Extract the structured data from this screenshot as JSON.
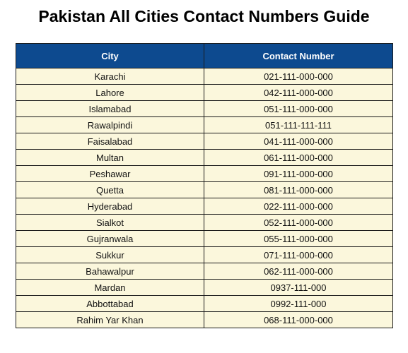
{
  "document": {
    "title": "Pakistan All Cities Contact Numbers Guide",
    "colors": {
      "header_background": "#0d4a8f",
      "header_text": "#ffffff",
      "row_background": "#fbf7dc"
    }
  },
  "table": {
    "headers": [
      "City",
      "Contact Number"
    ],
    "rows": [
      [
        "Karachi",
        "021-111-000-000"
      ],
      [
        "Lahore",
        "042-111-000-000"
      ],
      [
        "Islamabad",
        "051-111-000-000"
      ],
      [
        "Rawalpindi",
        "051-111-111-111"
      ],
      [
        "Faisalabad",
        "041-111-000-000"
      ],
      [
        "Multan",
        "061-111-000-000"
      ],
      [
        "Peshawar",
        "091-111-000-000"
      ],
      [
        "Quetta",
        "081-111-000-000"
      ],
      [
        "Hyderabad",
        "022-111-000-000"
      ],
      [
        "Sialkot",
        "052-111-000-000"
      ],
      [
        "Gujranwala",
        "055-111-000-000"
      ],
      [
        "Sukkur",
        "071-111-000-000"
      ],
      [
        "Bahawalpur",
        "062-111-000-000"
      ],
      [
        "Mardan",
        "0937-111-000"
      ],
      [
        "Abbottabad",
        "0992-111-000"
      ],
      [
        "Rahim Yar Khan",
        "068-111-000-000"
      ]
    ]
  }
}
